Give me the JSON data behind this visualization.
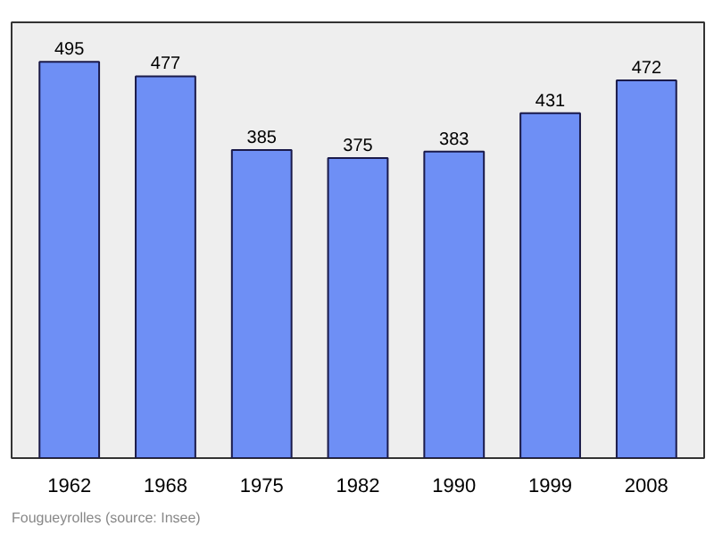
{
  "chart_data": {
    "type": "bar",
    "categories": [
      "1962",
      "1968",
      "1975",
      "1982",
      "1990",
      "1999",
      "2008"
    ],
    "values": [
      495,
      477,
      385,
      375,
      383,
      431,
      472
    ],
    "color": "#6e8ff5",
    "data_labels": true,
    "grid": false,
    "annotations": [
      "Fougueyrolles    (source: Insee)"
    ]
  }
}
